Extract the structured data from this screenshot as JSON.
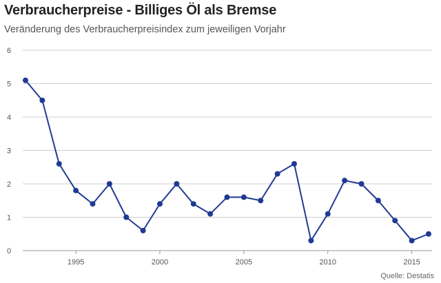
{
  "header": {
    "title": "Verbraucherpreise - Billiges Öl als Bremse",
    "subtitle": "Veränderung des Verbraucherpreisindex zum jeweiligen Vorjahr"
  },
  "source": "Quelle: Destatis",
  "chart_data": {
    "type": "line",
    "title": "Verbraucherpreise - Billiges Öl als Bremse",
    "subtitle": "Veränderung des Verbraucherpreisindex zum jeweiligen Vorjahr",
    "xlabel": "",
    "ylabel": "",
    "xlim": [
      1992,
      2016
    ],
    "ylim": [
      0,
      6
    ],
    "grid": true,
    "legend": "none",
    "x_ticks": [
      1995,
      2000,
      2005,
      2010,
      2015
    ],
    "y_ticks": [
      0,
      1,
      2,
      3,
      4,
      5,
      6
    ],
    "color": "#1f3a93",
    "series": [
      {
        "x": [
          1992,
          1993,
          1994,
          1995,
          1996,
          1997,
          1998,
          1999,
          2000,
          2001,
          2002,
          2003,
          2004,
          2005,
          2006,
          2007,
          2008,
          2009,
          2010,
          2011,
          2012,
          2013,
          2014,
          2015,
          2016
        ],
        "values": [
          5.1,
          4.5,
          2.6,
          1.8,
          1.4,
          2.0,
          1.0,
          0.6,
          1.4,
          2.0,
          1.4,
          1.1,
          1.6,
          1.6,
          1.5,
          2.3,
          2.6,
          0.3,
          1.1,
          2.1,
          2.0,
          1.5,
          0.9,
          0.3,
          0.5
        ]
      }
    ]
  }
}
